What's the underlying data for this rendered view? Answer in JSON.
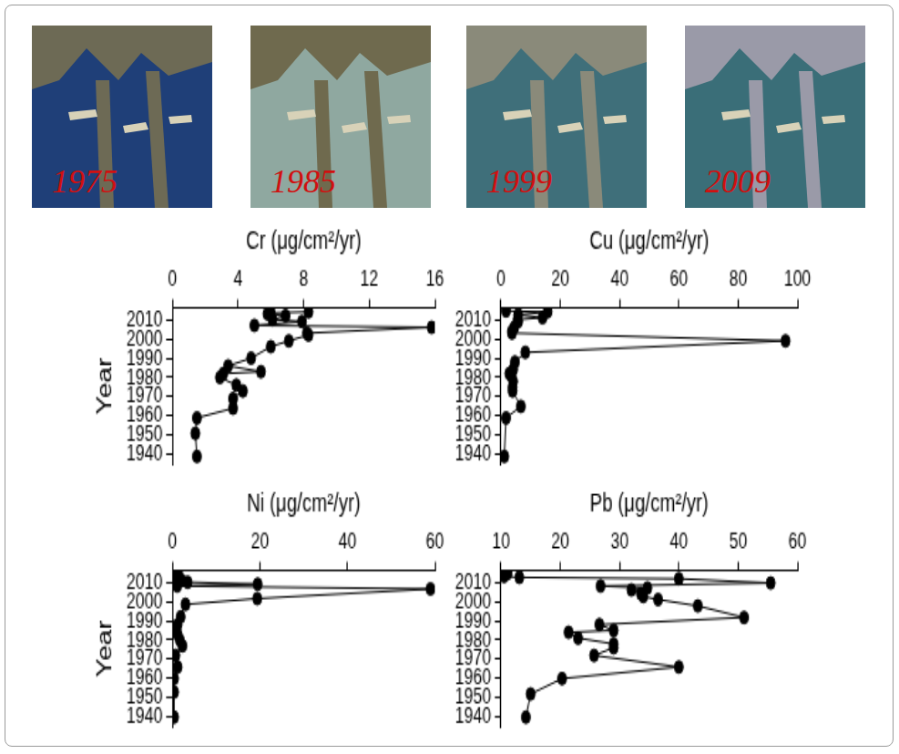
{
  "images": [
    {
      "label": "1975"
    },
    {
      "label": "1985"
    },
    {
      "label": "1999"
    },
    {
      "label": "2009"
    }
  ],
  "chart_data": [
    {
      "type": "line",
      "x_label": "Cr (μg/cm²/yr)",
      "y_label": "Year",
      "color": "#000000",
      "marker": "circle",
      "grid": false,
      "x": [
        8.3,
        6.0,
        5.8,
        6.9,
        6.1,
        7.9,
        5.0,
        15.8,
        8.2,
        8.3,
        7.1,
        6.0,
        4.8,
        3.4,
        5.4,
        3.1,
        2.9,
        3.9,
        4.3,
        3.7,
        3.7,
        1.5,
        1.4,
        1.5
      ],
      "y": [
        2014,
        2013.5,
        2013,
        2012,
        2010,
        2009,
        2007,
        2006,
        2003,
        2002,
        1999,
        1996,
        1990,
        1986,
        1983,
        1982,
        1980,
        1976,
        1973,
        1969,
        1964,
        1959,
        1951,
        1939
      ],
      "xlim": [
        0,
        16
      ],
      "xticks": [
        0,
        4,
        8,
        12,
        16
      ],
      "ylim": [
        1935,
        2016
      ],
      "yticks": [
        1940,
        1950,
        1960,
        1970,
        1980,
        1990,
        2000,
        2010
      ]
    },
    {
      "type": "line",
      "x_label": "Cu (μg/cm²/yr)",
      "color": "#000000",
      "marker": "circle",
      "grid": false,
      "x": [
        1.7,
        15.7,
        5.8,
        14.0,
        5.6,
        5.8,
        4.5,
        3.7,
        3.7,
        96,
        8.2,
        4.7,
        4.1,
        2.8,
        3.4,
        4.1,
        3.9,
        3.9,
        6.7,
        1.7,
        1.1
      ],
      "y": [
        2014.5,
        2014,
        2012.5,
        2011,
        2010,
        2009,
        2006,
        2004,
        2003,
        1999,
        1993,
        1988,
        1984,
        1982,
        1981,
        1978,
        1975,
        1973,
        1965,
        1959,
        1939
      ],
      "xlim": [
        0,
        100
      ],
      "xticks": [
        0,
        20,
        40,
        60,
        80,
        100
      ],
      "ylim": [
        1935,
        2016
      ],
      "yticks": [
        1940,
        1950,
        1960,
        1970,
        1980,
        1990,
        2000,
        2010
      ]
    },
    {
      "type": "line",
      "x_label": "Ni (μg/cm²/yr)",
      "y_label": "Year",
      "color": "#000000",
      "marker": "circle",
      "grid": false,
      "x": [
        1.3,
        1.0,
        2.1,
        3.5,
        19.5,
        1.1,
        59,
        19.4,
        3.0,
        1.9,
        1.2,
        0.5,
        1.2,
        1.7,
        2.3,
        0.7,
        1.2,
        0.4,
        0.4,
        0.4
      ],
      "y": [
        2014.5,
        2013,
        2011,
        2010,
        2009,
        2008,
        2006.5,
        2001.5,
        1998.5,
        1992,
        1988,
        1985.5,
        1983,
        1980,
        1977,
        1972,
        1966,
        1960,
        1953,
        1940
      ],
      "xlim": [
        0,
        60
      ],
      "xticks": [
        0,
        20,
        40,
        60
      ],
      "ylim": [
        1935,
        2016
      ],
      "yticks": [
        1940,
        1950,
        1960,
        1970,
        1980,
        1990,
        2000,
        2010
      ]
    },
    {
      "type": "line",
      "x_label": "Pb (μg/cm²/yr)",
      "color": "#000000",
      "marker": "circle",
      "grid": false,
      "x": [
        11.1,
        10.5,
        13.1,
        40,
        55.5,
        26.8,
        34.7,
        32,
        33.6,
        34,
        36.5,
        43.2,
        51,
        26.6,
        29,
        21.4,
        23,
        29,
        29,
        25.7,
        40,
        20.3,
        15,
        14.2
      ],
      "y": [
        2014.5,
        2013,
        2012.5,
        2011.8,
        2009.6,
        2008,
        2007,
        2006,
        2004,
        2002.6,
        2001,
        1997.7,
        1991.7,
        1988,
        1985,
        1984,
        1981,
        1978,
        1976,
        1972,
        1966,
        1960,
        1952,
        1940
      ],
      "xlim": [
        10,
        60
      ],
      "xticks": [
        10,
        20,
        30,
        40,
        50,
        60
      ],
      "ylim": [
        1935,
        2016
      ],
      "yticks": [
        1940,
        1950,
        1960,
        1970,
        1980,
        1990,
        2000,
        2010
      ]
    }
  ]
}
